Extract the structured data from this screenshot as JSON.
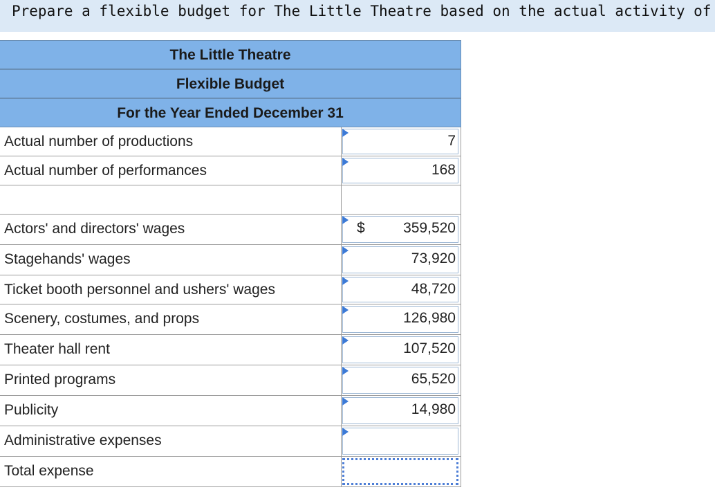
{
  "instruction": "Prepare a flexible budget for The Little Theatre based on the actual activity of the year",
  "table": {
    "title1": "The Little Theatre",
    "title2": "Flexible Budget",
    "title3": "For the Year Ended December 31",
    "rows": [
      {
        "label": "Actual number of productions",
        "value": "7",
        "currency": ""
      },
      {
        "label": "Actual number of performances",
        "value": "168",
        "currency": ""
      },
      {
        "label": "",
        "value": "",
        "currency": ""
      },
      {
        "label": "Actors' and directors' wages",
        "value": "359,520",
        "currency": "$"
      },
      {
        "label": "Stagehands' wages",
        "value": "73,920",
        "currency": ""
      },
      {
        "label": "Ticket booth personnel and ushers' wages",
        "value": "48,720",
        "currency": ""
      },
      {
        "label": "Scenery, costumes, and props",
        "value": "126,980",
        "currency": ""
      },
      {
        "label": "Theater hall rent",
        "value": "107,520",
        "currency": ""
      },
      {
        "label": "Printed programs",
        "value": "65,520",
        "currency": ""
      },
      {
        "label": "Publicity",
        "value": "14,980",
        "currency": ""
      },
      {
        "label": "Administrative expenses",
        "value": "",
        "currency": ""
      },
      {
        "label": "Total expense",
        "value": "",
        "currency": ""
      }
    ]
  },
  "colors": {
    "header_bg": "#7fb2e8",
    "instruction_bg": "#dce9f6",
    "marker": "#3c7ad6"
  }
}
